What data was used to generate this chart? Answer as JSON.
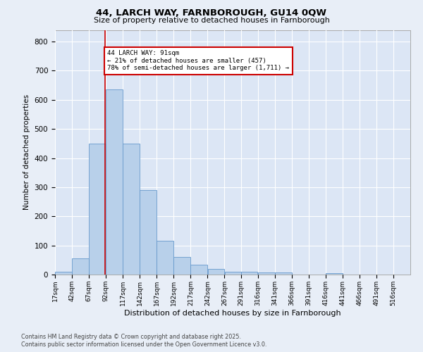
{
  "title1": "44, LARCH WAY, FARNBOROUGH, GU14 0QW",
  "title2": "Size of property relative to detached houses in Farnborough",
  "xlabel": "Distribution of detached houses by size in Farnborough",
  "ylabel": "Number of detached properties",
  "footer1": "Contains HM Land Registry data © Crown copyright and database right 2025.",
  "footer2": "Contains public sector information licensed under the Open Government Licence v3.0.",
  "annotation_line1": "44 LARCH WAY: 91sqm",
  "annotation_line2": "← 21% of detached houses are smaller (457)",
  "annotation_line3": "78% of semi-detached houses are larger (1,711) →",
  "property_size": 91,
  "bar_color": "#b8d0ea",
  "bar_edge_color": "#6699cc",
  "vline_color": "#cc0000",
  "annotation_box_edge": "#cc0000",
  "background_color": "#e8eef7",
  "plot_bg_color": "#dce6f5",
  "grid_color": "#ffffff",
  "categories": [
    "17sqm",
    "42sqm",
    "67sqm",
    "92sqm",
    "117sqm",
    "142sqm",
    "167sqm",
    "192sqm",
    "217sqm",
    "242sqm",
    "267sqm",
    "291sqm",
    "316sqm",
    "341sqm",
    "366sqm",
    "391sqm",
    "416sqm",
    "441sqm",
    "466sqm",
    "491sqm",
    "516sqm"
  ],
  "bin_starts": [
    17,
    42,
    67,
    92,
    117,
    142,
    167,
    192,
    217,
    242,
    267,
    291,
    316,
    341,
    366,
    391,
    416,
    441,
    466,
    491,
    516
  ],
  "bin_width": 25,
  "values": [
    10,
    55,
    450,
    635,
    450,
    290,
    115,
    60,
    35,
    20,
    10,
    10,
    8,
    8,
    0,
    0,
    5,
    0,
    0,
    0,
    0
  ],
  "ylim": [
    0,
    840
  ],
  "yticks": [
    0,
    100,
    200,
    300,
    400,
    500,
    600,
    700,
    800
  ],
  "figwidth": 6.0,
  "figheight": 5.0,
  "dpi": 100
}
